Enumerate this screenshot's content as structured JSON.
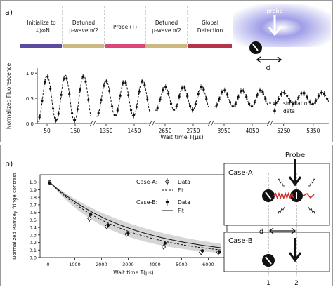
{
  "panel_a": {
    "label": "a)",
    "sequence": [
      {
        "lines": [
          "Initialize to",
          "|↓⟩⊗N"
        ],
        "color": "#5b4a9e"
      },
      {
        "lines": [
          "Detuned",
          "μ-wave π/2"
        ],
        "color": "#cdb980"
      },
      {
        "lines": [
          "Probe (T)"
        ],
        "color": "#d9477b"
      },
      {
        "lines": [
          "Detuned",
          "μ-wave π/2"
        ],
        "color": "#cdb980"
      },
      {
        "lines": [
          "Global",
          "Detection"
        ],
        "color": "#b5344a"
      }
    ],
    "probe_label": "probe",
    "distance_label": "d",
    "chart": {
      "type": "line",
      "ylabel": "Normalized Fluorescence",
      "xlabel": "Wait time T(μs)",
      "ylim": [
        0.0,
        1.1
      ],
      "yticks": [
        "0.0",
        "0.5",
        "1.0"
      ],
      "ytick_values": [
        0.0,
        0.5,
        1.0
      ],
      "segments": [
        {
          "xlim": [
            15,
            205
          ],
          "xticks": [
            50,
            150
          ],
          "amplitude": 0.46,
          "period": 65,
          "phase_x": 50
        },
        {
          "xlim": [
            1315,
            1505
          ],
          "xticks": [
            1350,
            1450
          ],
          "amplitude": 0.36,
          "period": 65,
          "phase_x": 1350
        },
        {
          "xlim": [
            2615,
            2805
          ],
          "xticks": [
            2650,
            2750
          ],
          "amplitude": 0.24,
          "period": 65,
          "phase_x": 2650
        },
        {
          "xlim": [
            3915,
            4105
          ],
          "xticks": [
            3950,
            4050
          ],
          "amplitude": 0.17,
          "period": 65,
          "phase_x": 3950
        },
        {
          "xlim": [
            5215,
            5405
          ],
          "xticks": [
            5250,
            5350
          ],
          "amplitude": 0.12,
          "period": 65,
          "phase_x": 5250
        }
      ],
      "offset": 0.5,
      "legend": [
        {
          "name": "simulation",
          "style": "dashed"
        },
        {
          "name": "data",
          "style": "marker"
        }
      ],
      "legend_position": "lower-right",
      "colors": {
        "line": "#111111",
        "marker": "#111111"
      }
    }
  },
  "panel_b": {
    "label": "b)",
    "chart": {
      "type": "line",
      "ylabel": "Normalized Ramsey fringe contrast",
      "xlabel": "Wait time T(μs)",
      "xlim": [
        -300,
        6700
      ],
      "ylim": [
        0.0,
        1.1
      ],
      "xticks": [
        0,
        1000,
        2000,
        3000,
        4000,
        5000,
        6000
      ],
      "yticks": [
        0.0,
        0.1,
        0.2,
        0.3,
        0.4,
        0.5,
        0.6,
        0.7,
        0.8,
        0.9,
        1.0
      ],
      "ytick_labels": [
        "0.0",
        "0.1",
        "0.2",
        "0.3",
        "0.4",
        "0.5",
        "0.6",
        "0.7",
        "0.8",
        "0.9",
        "1.0"
      ],
      "series": [
        {
          "name": "Case-A",
          "marker": "open-diamond",
          "x": [
            60,
            1550,
            2200,
            2950,
            4330,
            5730,
            6380
          ],
          "y": [
            1.0,
            0.52,
            0.41,
            0.31,
            0.14,
            0.07,
            0.07
          ],
          "err": [
            0.03,
            0.05,
            0.03,
            0.03,
            0.03,
            0.02,
            0.02
          ]
        },
        {
          "name": "Case-B",
          "marker": "filled-circle",
          "x": [
            60,
            1600,
            2250,
            3000,
            4380,
            5780,
            6420
          ],
          "y": [
            0.99,
            0.57,
            0.43,
            0.32,
            0.19,
            0.09,
            0.07
          ],
          "err": [
            0.03,
            0.04,
            0.03,
            0.03,
            0.03,
            0.02,
            0.02
          ]
        }
      ],
      "fit": {
        "A_tau": 2800,
        "B_tau": 3150
      },
      "legend": [
        {
          "group": "Case-A:",
          "entries": [
            "Data",
            "Fit"
          ]
        },
        {
          "group": "Case-B:",
          "entries": [
            "Data",
            "Fit"
          ]
        }
      ],
      "legend_position": "top-right"
    },
    "diagram": {
      "probe_label": "Probe",
      "case_a_label": "Case-A",
      "case_b_label": "Case-B",
      "distance_label": "d",
      "site_labels": [
        "1",
        "2"
      ]
    }
  }
}
